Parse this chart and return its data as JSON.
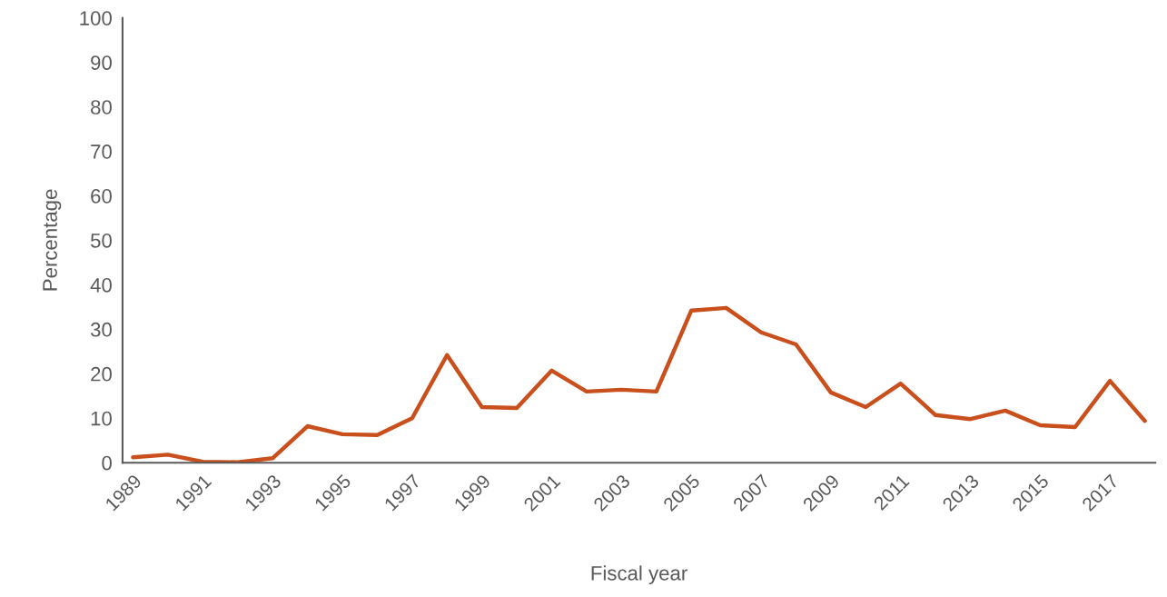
{
  "chart_data": {
    "type": "line",
    "xlabel": "Fiscal year",
    "ylabel": "Percentage",
    "categories": [
      "1989",
      null,
      "1991",
      null,
      "1993",
      null,
      "1995",
      null,
      "1997",
      null,
      "1999",
      null,
      "2001",
      null,
      "2003",
      null,
      "2005",
      null,
      "2007",
      null,
      "2009",
      null,
      "2011",
      null,
      "2013",
      null,
      "2015",
      null,
      "2017",
      null
    ],
    "series": [
      {
        "color": "#c94f1c",
        "values": [
          1.2,
          1.8,
          0.2,
          0.1,
          1.0,
          8.2,
          6.4,
          6.2,
          10.0,
          24.2,
          12.5,
          12.3,
          20.7,
          16.0,
          16.4,
          16.0,
          34.2,
          34.8,
          29.3,
          26.6,
          15.8,
          12.5,
          17.8,
          10.7,
          9.8,
          11.7,
          8.4,
          8.0,
          18.4,
          9.4
        ]
      }
    ],
    "ylim": [
      0,
      100
    ],
    "yticks": [
      0,
      10,
      20,
      30,
      40,
      50,
      60,
      70,
      80,
      90,
      100
    ],
    "grid": false,
    "marker": "none",
    "line_style": "solid"
  }
}
